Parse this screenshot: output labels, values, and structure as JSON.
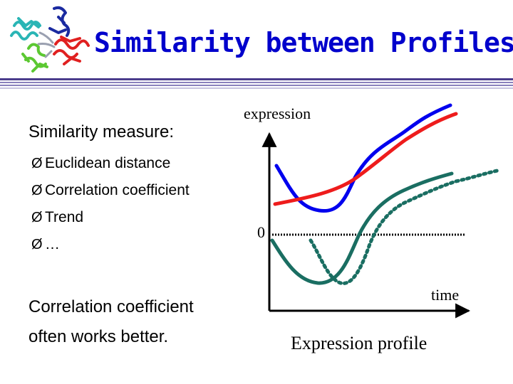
{
  "title": "Similarity between Profiles",
  "subtitle": "Similarity measure:",
  "bullets": [
    {
      "marker": "Ø",
      "text": "Euclidean distance"
    },
    {
      "marker": "Ø",
      "text": "Correlation coefficient"
    },
    {
      "marker": "Ø",
      "text": "Trend"
    },
    {
      "marker": "Ø",
      "text": "…"
    }
  ],
  "note": {
    "line1": "Correlation coefficient",
    "line2": "often works better."
  },
  "figure": {
    "y_axis_label": "expression",
    "zero_label": "0",
    "x_axis_label": "time",
    "caption": "Expression profile"
  },
  "colors": {
    "title": "#0000cc",
    "rule_dark": "#4a3c8c",
    "rule_mid": "#8a80bc",
    "rule_light": "#c8c4e0",
    "blue_curve": "#0000ee",
    "red_curve": "#ee1c1c",
    "teal_curve": "#1a6e62",
    "axis": "#000000"
  },
  "logo": "protein-structure-ribbon-image"
}
